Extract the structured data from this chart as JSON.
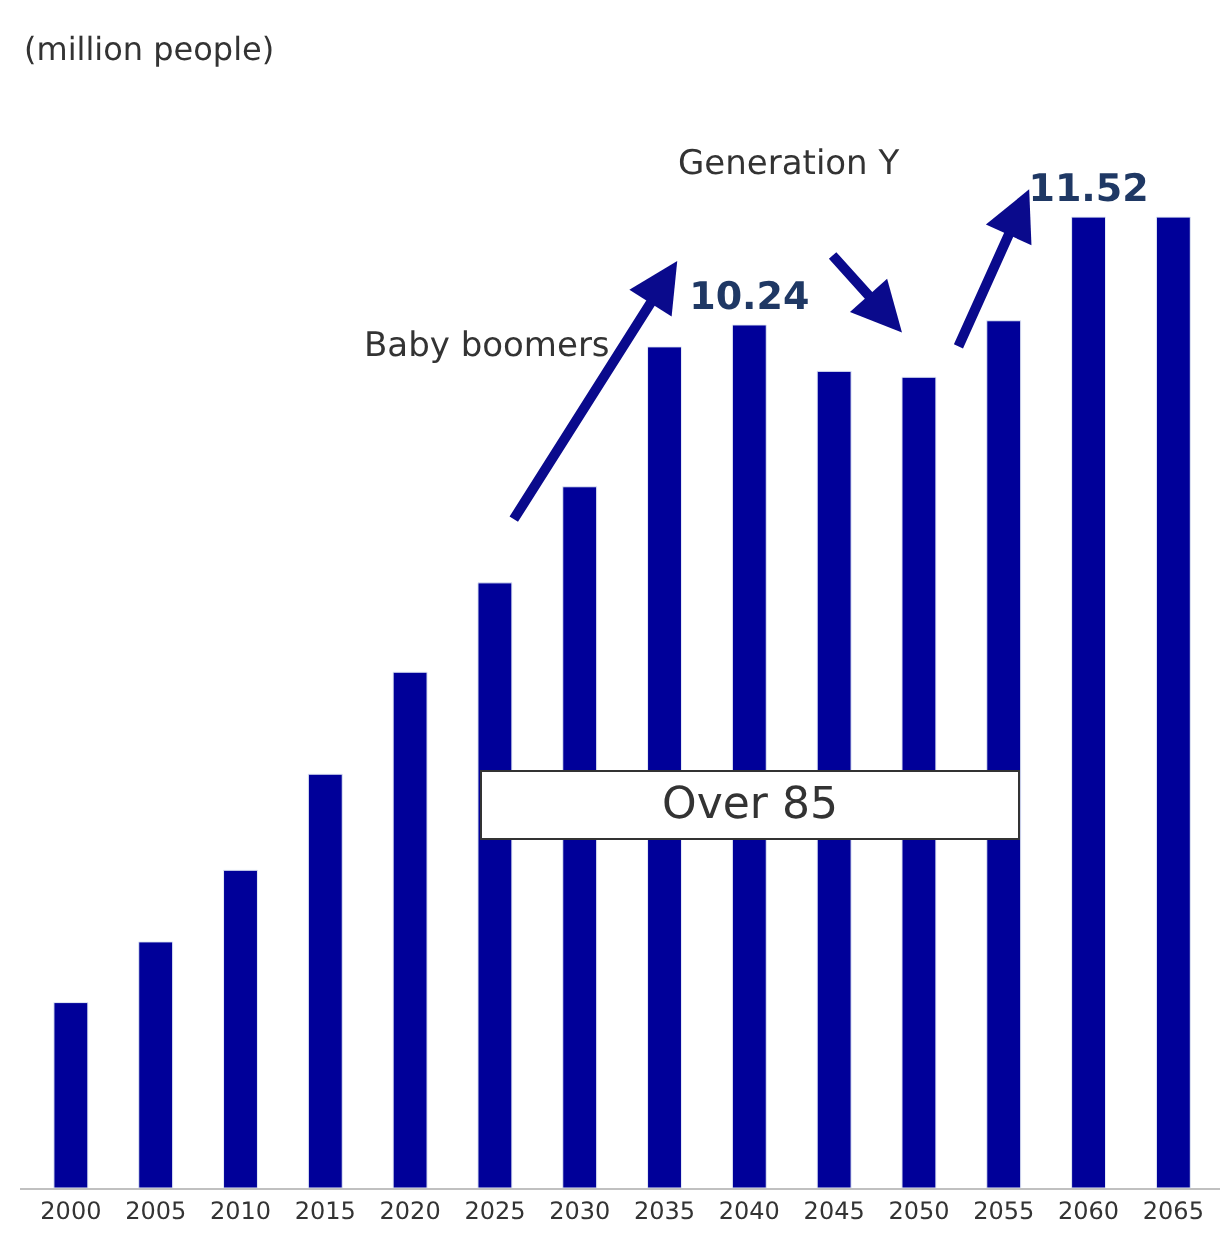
{
  "chart_data": {
    "type": "bar",
    "ylabel": "(million people)",
    "categories": [
      "2000",
      "2005",
      "2010",
      "2015",
      "2020",
      "2025",
      "2030",
      "2035",
      "2040",
      "2045",
      "2050",
      "2055",
      "2060",
      "2065"
    ],
    "series": [
      {
        "color": "#000099",
        "values": [
          2.2,
          2.92,
          3.77,
          4.91,
          6.12,
          7.18,
          8.32,
          9.98,
          10.24,
          9.69,
          9.62,
          10.29,
          11.52,
          11.52
        ],
        "value_labels": [
          null,
          null,
          null,
          null,
          null,
          null,
          null,
          null,
          "10.24",
          null,
          null,
          null,
          "11.52",
          null
        ]
      }
    ],
    "annotations": [
      "Baby boomers",
      "Generation Y",
      "Over 85"
    ],
    "tick_labels": "x"
  }
}
